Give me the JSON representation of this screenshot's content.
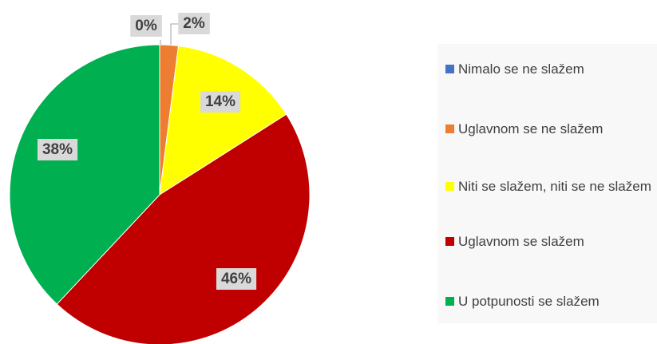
{
  "chart_data": {
    "type": "pie",
    "categories": [
      "Nimalo se ne slažem",
      "Uglavnom se ne slažem",
      "Niti se slažem, niti se ne slažem",
      "Uglavnom se slažem",
      "U potpunosti se slažem"
    ],
    "values": [
      0,
      2,
      14,
      46,
      38
    ],
    "value_labels": [
      "0%",
      "2%",
      "14%",
      "46%",
      "38%"
    ],
    "colors": [
      "#4472c4",
      "#ed7d31",
      "#ffff00",
      "#c00000",
      "#00b050"
    ],
    "legend": "right"
  }
}
